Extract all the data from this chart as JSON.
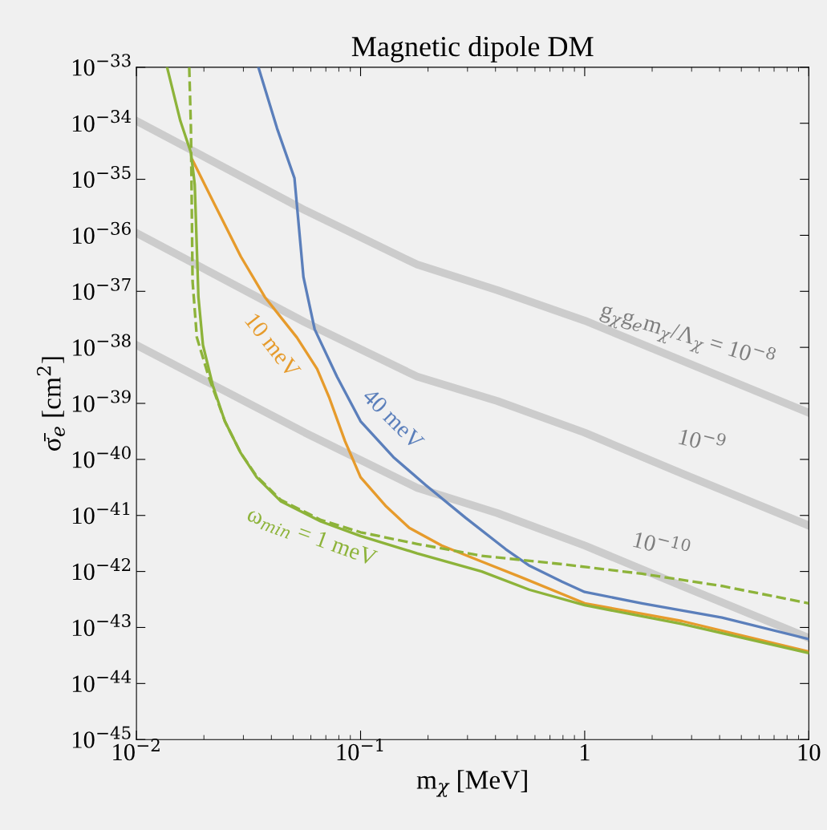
{
  "chart_data": {
    "type": "line",
    "title": "Magnetic dipole DM",
    "xlabel": "m$_{χ}$ [MeV]",
    "ylabel": "σ̄$_{e}$ [cm$^{2}$]",
    "log": "xy",
    "grid": false,
    "legend": false,
    "marker": "none",
    "xlim": [
      0.01,
      10
    ],
    "xticks": [
      {
        "value": 0.01,
        "label": "10$^{−2}$"
      },
      {
        "value": 0.1,
        "label": "10$^{−1}$"
      },
      1,
      10
    ],
    "ylim": [
      1e-45,
      1e-33
    ],
    "yticks": [
      {
        "value": 1e-45,
        "label": "10$^{−45}$"
      },
      {
        "value": 1e-44,
        "label": "10$^{−44}$"
      },
      {
        "value": 1e-43,
        "label": "10$^{−43}$"
      },
      {
        "value": 1e-42,
        "label": "10$^{−42}$"
      },
      {
        "value": 1e-41,
        "label": "10$^{−41}$"
      },
      {
        "value": 1e-40,
        "label": "10$^{−40}$"
      },
      {
        "value": 1e-39,
        "label": "10$^{−39}$"
      },
      {
        "value": 1e-38,
        "label": "10$^{−38}$"
      },
      {
        "value": 1e-37,
        "label": "10$^{−37}$"
      },
      {
        "value": 1e-36,
        "label": "10$^{−36}$"
      },
      {
        "value": 1e-35,
        "label": "10$^{−35}$"
      },
      {
        "value": 1e-34,
        "label": "10$^{−34}$"
      },
      {
        "value": 1e-33,
        "label": "10$^{−33}$"
      }
    ],
    "series": [
      {
        "name": "g$_{χ}$g$_{e}$m$_{χ}$/Λ$_{χ}$ = 10$^{−8}$",
        "color": "#cccccc",
        "line_style": "solid",
        "x": [
          0.01,
          0.0565,
          0.179,
          0.408,
          1,
          2.72,
          10
        ],
        "values": [
          1.1e-34,
          2.8e-36,
          3e-37,
          1.05e-37,
          3e-38,
          5.8e-39,
          6.8e-40
        ]
      },
      {
        "name": "10$^{−9}$",
        "color": "#cccccc",
        "line_style": "solid",
        "x": [
          0.01,
          0.0565,
          0.179,
          0.408,
          1,
          2.72,
          10
        ],
        "values": [
          1.1e-36,
          2.8e-38,
          3e-39,
          1.1e-39,
          3e-40,
          5.6e-41,
          6.6e-42
        ]
      },
      {
        "name": "10$^{−10}$",
        "color": "#cccccc",
        "line_style": "solid",
        "x": [
          0.01,
          0.0565,
          0.179,
          0.408,
          1,
          2.72,
          10
        ],
        "values": [
          1.1e-38,
          3e-40,
          3.1e-41,
          1.1e-41,
          2.9e-42,
          5.5e-43,
          6.5e-44
        ]
      },
      {
        "name": "10 meV",
        "color": "#e69b2c",
        "line_style": "solid",
        "x": [
          0.0178,
          0.0228,
          0.0292,
          0.0374,
          0.052,
          0.064,
          0.0723,
          0.0853,
          0.1,
          0.129,
          0.165,
          0.23,
          0.347,
          0.524,
          1,
          2.72,
          10
        ],
        "values": [
          2.2e-35,
          3e-36,
          4.2e-37,
          7.9e-38,
          1.5e-38,
          4.1e-39,
          1.3e-39,
          2.1e-40,
          4.8e-41,
          1.5e-41,
          6e-42,
          2.9e-42,
          1.5e-42,
          7.8e-43,
          2.7e-43,
          1.3e-43,
          3.7e-44
        ]
      },
      {
        "name": "40 meV",
        "color": "#5b7fbb",
        "line_style": "solid",
        "x": [
          0.035,
          0.0424,
          0.0507,
          0.0556,
          0.0624,
          0.0785,
          0.1,
          0.14,
          0.195,
          0.294,
          0.444,
          0.568,
          0.791,
          1,
          1.8,
          4.1,
          10
        ],
        "values": [
          1e-33,
          8.1e-35,
          1.05e-35,
          1.8e-37,
          2.1e-38,
          3e-39,
          4.8e-40,
          1.1e-40,
          3.5e-41,
          9.1e-42,
          2.5e-42,
          1.26e-42,
          6.6e-43,
          4.3e-43,
          2.7e-43,
          1.5e-43,
          6.2e-44
        ]
      },
      {
        "color": "#8db33a",
        "line_style": "dashed",
        "x": [
          0.0172,
          0.0175,
          0.0178,
          0.0186,
          0.021,
          0.0248,
          0.0292,
          0.0344,
          0.044,
          0.0665,
          0.1,
          0.179,
          0.347,
          0.791,
          1.8,
          4.1,
          10
        ],
        "values": [
          1e-33,
          8.1e-35,
          1.5e-37,
          1.5e-38,
          3e-39,
          4.8e-40,
          1.3e-40,
          5e-41,
          1.9e-41,
          8.3e-42,
          5e-42,
          3.1e-42,
          1.9e-42,
          1.35e-42,
          9.1e-43,
          5.5e-43,
          2.7e-43
        ]
      },
      {
        "name": "ω$_{min}$ = 1 meV",
        "color": "#8db33a",
        "line_style": "solid",
        "x": [
          0.0137,
          0.0157,
          0.0175,
          0.0182,
          0.0189,
          0.0198,
          0.0219,
          0.0248,
          0.0292,
          0.0344,
          0.044,
          0.0665,
          0.1,
          0.179,
          0.347,
          0.568,
          1,
          2.72,
          10
        ],
        "values": [
          1e-33,
          1.1e-34,
          3e-35,
          8.1e-36,
          7.9e-38,
          1.1e-38,
          2.1e-39,
          4.8e-40,
          1.3e-40,
          4.8e-41,
          1.8e-41,
          7.8e-42,
          4.3e-42,
          2.1e-42,
          1e-42,
          4.7e-43,
          2.5e-43,
          1.15e-43,
          3.5e-44
        ]
      }
    ]
  }
}
